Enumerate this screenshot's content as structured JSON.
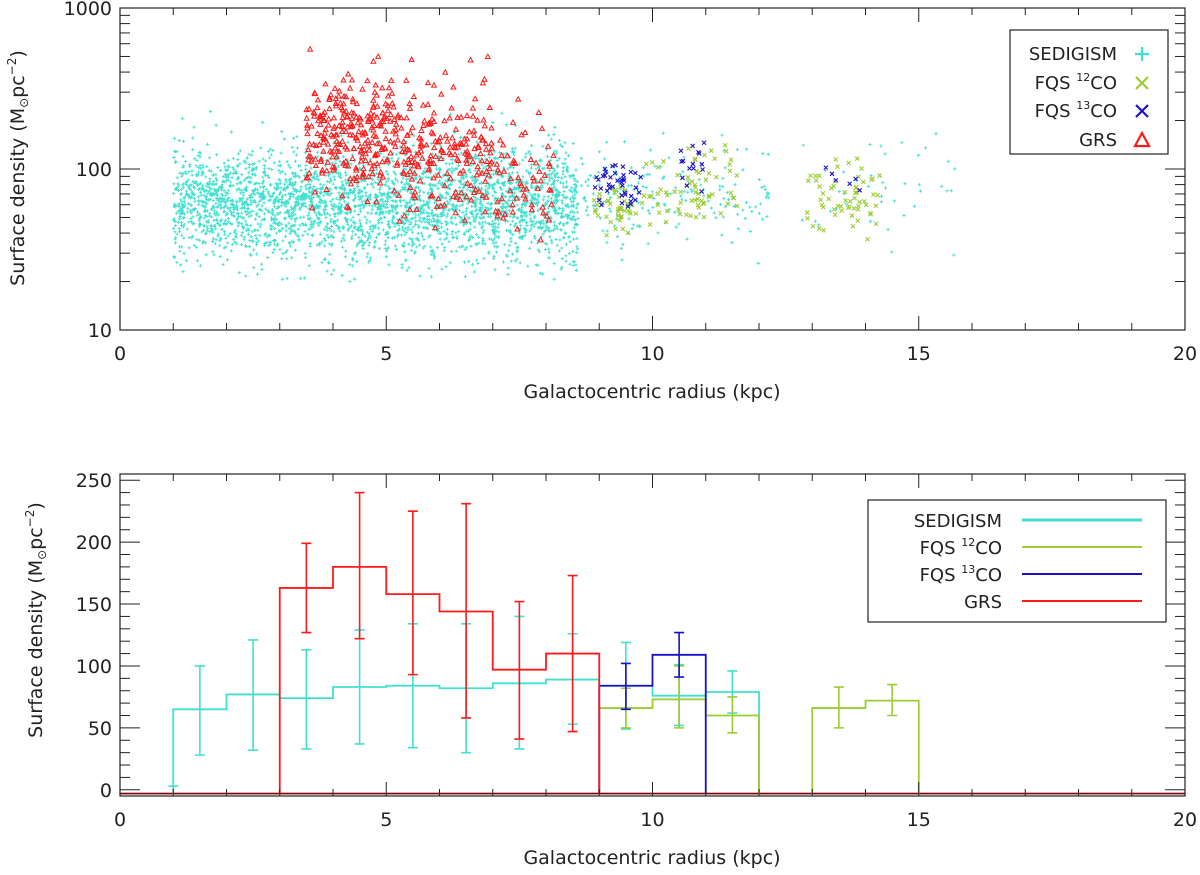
{
  "colors": {
    "sedigism": "#40e0d0",
    "fqs12": "#9acd32",
    "fqs13": "#1a10c8",
    "grs": "#ff1a1a",
    "axis": "#222222"
  },
  "chart_data": [
    {
      "type": "scatter",
      "xlabel": "Galactocentric radius (kpc)",
      "ylabel_main": "Surface density (M",
      "ylabel_sun": "⊙",
      "ylabel_unit": "pc",
      "ylabel_exp": "−2",
      "ylabel_close": ")",
      "xlim": [
        0,
        20
      ],
      "ylim": [
        10,
        1000
      ],
      "yscale": "log",
      "xticks": [
        0,
        5,
        10,
        15,
        20
      ],
      "xtick_labels": [
        "0",
        "5",
        "10",
        "15",
        "20"
      ],
      "yticks": [
        10,
        100,
        1000
      ],
      "ytick_labels": [
        "10",
        "100",
        "1000"
      ],
      "legend": {
        "position": "top-right",
        "entries": [
          {
            "name": "SEDIGISM",
            "sup": "",
            "suffix": "",
            "marker": "+",
            "series": "sedigism"
          },
          {
            "name": "FQS ",
            "sup": "12",
            "suffix": "CO",
            "marker": "x",
            "series": "fqs12"
          },
          {
            "name": "FQS ",
            "sup": "13",
            "suffix": "CO",
            "marker": "x",
            "series": "fqs13"
          },
          {
            "name": "GRS",
            "sup": "",
            "suffix": "",
            "marker": "triangle",
            "series": "grs"
          }
        ]
      },
      "series": [
        {
          "name": "SEDIGISM",
          "key": "sedigism",
          "clusters": [
            {
              "x": [
                1.0,
                8.6
              ],
              "ymed": 62,
              "spread": 0.17,
              "n": 3200
            },
            {
              "x": [
                8.6,
                12.2
              ],
              "ymed": 68,
              "spread": 0.16,
              "n": 180
            },
            {
              "x": [
                12.5,
                15.8
              ],
              "ymed": 75,
              "spread": 0.18,
              "n": 40
            }
          ]
        },
        {
          "name": "FQS 12CO",
          "key": "fqs12",
          "clusters": [
            {
              "x": [
                8.9,
                9.6
              ],
              "ymed": 58,
              "spread": 0.08,
              "n": 40
            },
            {
              "x": [
                9.6,
                11.6
              ],
              "ymed": 72,
              "spread": 0.12,
              "n": 70
            },
            {
              "x": [
                12.9,
                14.3
              ],
              "ymed": 65,
              "spread": 0.12,
              "n": 60
            }
          ]
        },
        {
          "name": "FQS 13CO",
          "key": "fqs13",
          "clusters": [
            {
              "x": [
                8.9,
                9.8
              ],
              "ymed": 78,
              "spread": 0.06,
              "n": 40
            },
            {
              "x": [
                10.4,
                11.0
              ],
              "ymed": 105,
              "spread": 0.08,
              "n": 15
            },
            {
              "x": [
                13.0,
                14.1
              ],
              "ymed": 85,
              "spread": 0.06,
              "n": 6
            }
          ]
        },
        {
          "name": "GRS",
          "key": "grs",
          "clusters": [
            {
              "x": [
                3.5,
                5.2
              ],
              "ymed": 170,
              "spread": 0.17,
              "n": 260
            },
            {
              "x": [
                5.2,
                7.0
              ],
              "ymed": 125,
              "spread": 0.2,
              "n": 200
            },
            {
              "x": [
                7.0,
                8.2
              ],
              "ymed": 85,
              "spread": 0.18,
              "n": 60
            }
          ]
        }
      ]
    },
    {
      "type": "step",
      "xlabel": "Galactocentric radius (kpc)",
      "ylabel_main": "Surface density (M",
      "ylabel_sun": "⊙",
      "ylabel_unit": "pc",
      "ylabel_exp": "−2",
      "ylabel_close": ")",
      "xlim": [
        0,
        20
      ],
      "ylim": [
        -5,
        255
      ],
      "xticks": [
        0,
        5,
        10,
        15,
        20
      ],
      "xtick_labels": [
        "0",
        "5",
        "10",
        "15",
        "20"
      ],
      "yticks": [
        0,
        50,
        100,
        150,
        200,
        250
      ],
      "ytick_labels": [
        "0",
        "50",
        "100",
        "150",
        "200",
        "250"
      ],
      "legend": {
        "position": "top-right",
        "entries": [
          {
            "name": "SEDIGISM",
            "sup": "",
            "suffix": "",
            "series": "sedigism"
          },
          {
            "name": "FQS ",
            "sup": "12",
            "suffix": "CO",
            "series": "fqs12"
          },
          {
            "name": "FQS ",
            "sup": "13",
            "suffix": "CO",
            "series": "fqs13"
          },
          {
            "name": "GRS",
            "sup": "",
            "suffix": "",
            "series": "grs"
          }
        ]
      },
      "series": [
        {
          "name": "SEDIGISM",
          "key": "sedigism",
          "bins": [
            {
              "lo": 1,
              "hi": 2,
              "value": 65,
              "err_lo": 28,
              "err_hi": 100
            },
            {
              "lo": 2,
              "hi": 3,
              "value": 77,
              "err_lo": 32,
              "err_hi": 121
            },
            {
              "lo": 3,
              "hi": 4,
              "value": 74,
              "err_lo": 33,
              "err_hi": 113
            },
            {
              "lo": 4,
              "hi": 5,
              "value": 83,
              "err_lo": 37,
              "err_hi": 129
            },
            {
              "lo": 5,
              "hi": 6,
              "value": 84,
              "err_lo": 34,
              "err_hi": 134
            },
            {
              "lo": 6,
              "hi": 7,
              "value": 82,
              "err_lo": 30,
              "err_hi": 134
            },
            {
              "lo": 7,
              "hi": 8,
              "value": 86,
              "err_lo": 33,
              "err_hi": 140
            },
            {
              "lo": 8,
              "hi": 9,
              "value": 89,
              "err_lo": 53,
              "err_hi": 126
            },
            {
              "lo": 9,
              "hi": 10,
              "value": 84,
              "err_lo": 49,
              "err_hi": 119
            },
            {
              "lo": 10,
              "hi": 11,
              "value": 76,
              "err_lo": 52,
              "err_hi": 101
            },
            {
              "lo": 11,
              "hi": 12,
              "value": 79,
              "err_lo": 62,
              "err_hi": 96
            }
          ]
        },
        {
          "name": "FQS 12CO",
          "key": "fqs12",
          "bins": [
            {
              "lo": 9,
              "hi": 10,
              "value": 66,
              "err_lo": 50,
              "err_hi": 82
            },
            {
              "lo": 10,
              "hi": 11,
              "value": 73,
              "err_lo": 50,
              "err_hi": 100
            },
            {
              "lo": 11,
              "hi": 12,
              "value": 60,
              "err_lo": 46,
              "err_hi": 75
            },
            {
              "lo": 13,
              "hi": 14,
              "value": 66,
              "err_lo": 50,
              "err_hi": 83
            },
            {
              "lo": 14,
              "hi": 15,
              "value": 72,
              "err_lo": 60,
              "err_hi": 85
            }
          ]
        },
        {
          "name": "FQS 13CO",
          "key": "fqs13",
          "bins": [
            {
              "lo": 9,
              "hi": 10,
              "value": 84,
              "err_lo": 65,
              "err_hi": 102
            },
            {
              "lo": 10,
              "hi": 11,
              "value": 109,
              "err_lo": 91,
              "err_hi": 127
            }
          ]
        },
        {
          "name": "GRS",
          "key": "grs",
          "bins": [
            {
              "lo": 3,
              "hi": 4,
              "value": 163,
              "err_lo": 127,
              "err_hi": 199
            },
            {
              "lo": 4,
              "hi": 5,
              "value": 180,
              "err_lo": 122,
              "err_hi": 240
            },
            {
              "lo": 5,
              "hi": 6,
              "value": 158,
              "err_lo": 93,
              "err_hi": 225
            },
            {
              "lo": 6,
              "hi": 7,
              "value": 144,
              "err_lo": 58,
              "err_hi": 231
            },
            {
              "lo": 7,
              "hi": 8,
              "value": 97,
              "err_lo": 41,
              "err_hi": 152
            },
            {
              "lo": 8,
              "hi": 9,
              "value": 110,
              "err_lo": 47,
              "err_hi": 173
            }
          ]
        }
      ],
      "baseline_value": -3
    }
  ]
}
